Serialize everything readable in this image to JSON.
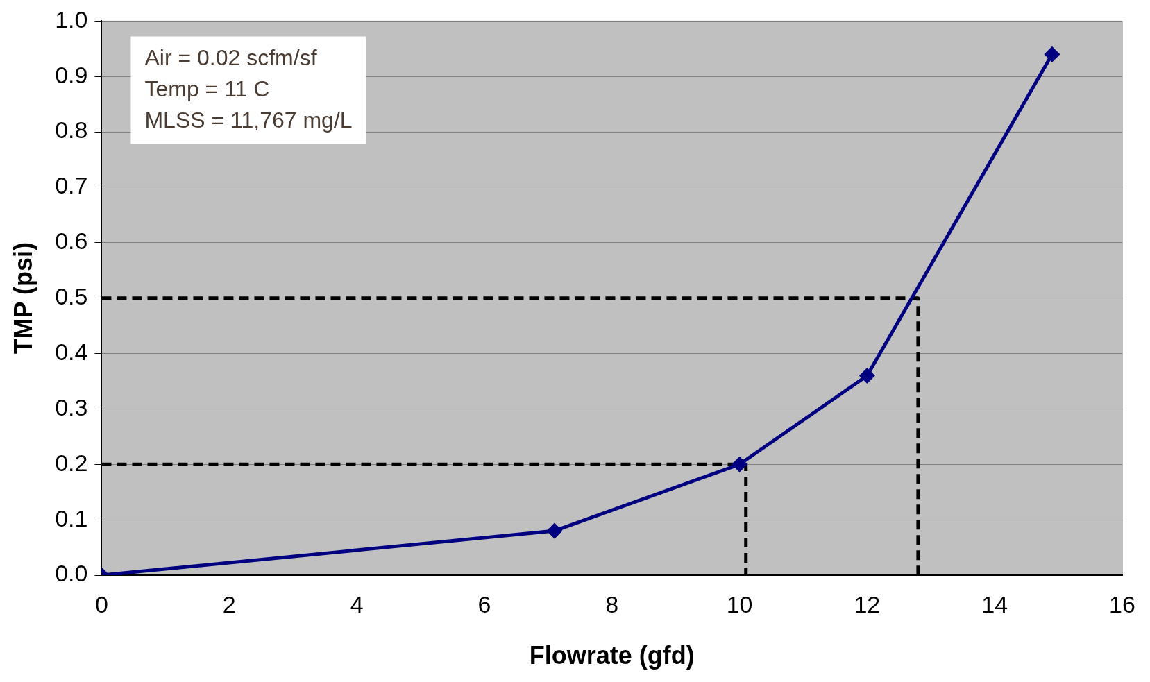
{
  "chart_data": {
    "type": "line",
    "xlabel": "Flowrate (gfd)",
    "ylabel": "TMP (psi)",
    "xlim": [
      0,
      16
    ],
    "xticks": [
      0,
      2,
      4,
      6,
      8,
      10,
      12,
      14,
      16
    ],
    "ylim": [
      0,
      1.0
    ],
    "yticks": [
      {
        "value": 0,
        "label": "0.0"
      },
      {
        "value": 0.1,
        "label": "0.1"
      },
      {
        "value": 0.2,
        "label": "0.2"
      },
      {
        "value": 0.3,
        "label": "0.3"
      },
      {
        "value": 0.4,
        "label": "0.4"
      },
      {
        "value": 0.5,
        "label": "0.5"
      },
      {
        "value": 0.6,
        "label": "0.6"
      },
      {
        "value": 0.7,
        "label": "0.7"
      },
      {
        "value": 0.8,
        "label": "0.8"
      },
      {
        "value": 0.9,
        "label": "0.9"
      },
      {
        "value": 1.0,
        "label": "1.0"
      }
    ],
    "grid": "y",
    "legend": false,
    "annotations": [
      "Air = 0.02 scfm/sf",
      "Temp = 11 C",
      "MLSS = 11,767 mg/L"
    ],
    "series": [
      {
        "color": "#000080",
        "x": [
          0,
          7.1,
          10.0,
          12.0,
          14.9
        ],
        "values": [
          0,
          0.08,
          0.2,
          0.36,
          0.94
        ],
        "marker": "diamond",
        "line_style": "solid"
      },
      {
        "color": "#000000",
        "x": [
          0,
          10.1,
          10.1
        ],
        "values": [
          0.2,
          0.2,
          0
        ],
        "marker": "none",
        "line_style": "dashed"
      },
      {
        "color": "#000000",
        "x": [
          0,
          12.8,
          12.8
        ],
        "values": [
          0.5,
          0.5,
          0
        ],
        "marker": "none",
        "line_style": "dashed"
      }
    ]
  }
}
